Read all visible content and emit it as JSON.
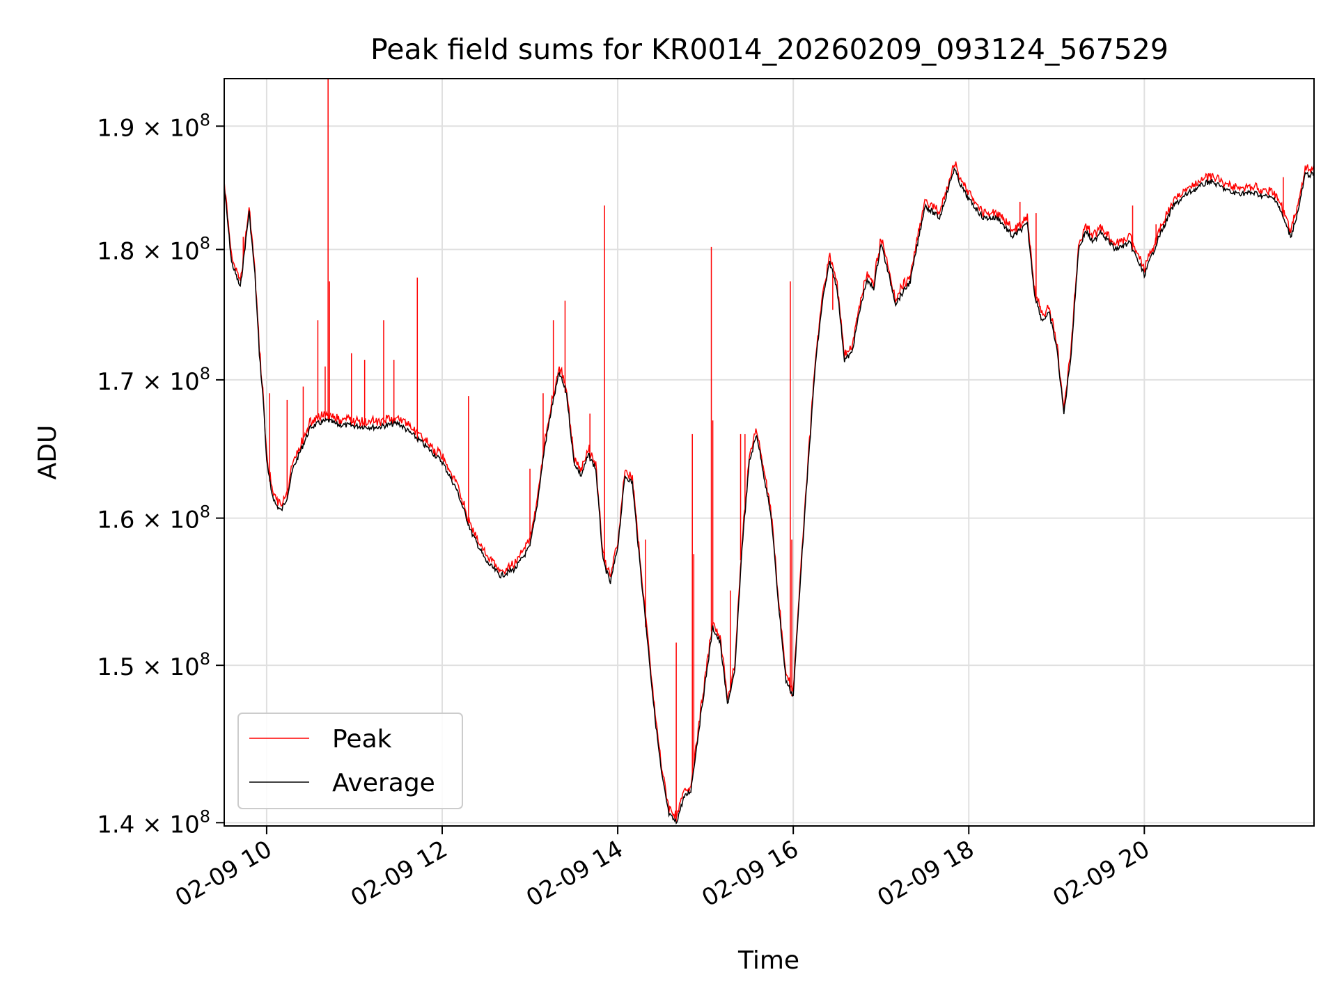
{
  "chart_data": {
    "type": "line",
    "title": "Peak field sums for KR0014_20260209_093124_567529",
    "xlabel": "Time",
    "ylabel": "ADU",
    "y_scale": "log",
    "grid": true,
    "legend_position": "lower-left",
    "xlim": [
      "2026-02-09 09:31",
      "2026-02-09 21:56"
    ],
    "ylim": [
      139800000,
      194000000
    ],
    "x_ticks": [
      {
        "value": "2026-02-09 10:00",
        "label": "02-09 10"
      },
      {
        "value": "2026-02-09 12:00",
        "label": "02-09 12"
      },
      {
        "value": "2026-02-09 14:00",
        "label": "02-09 14"
      },
      {
        "value": "2026-02-09 16:00",
        "label": "02-09 16"
      },
      {
        "value": "2026-02-09 18:00",
        "label": "02-09 18"
      },
      {
        "value": "2026-02-09 20:00",
        "label": "02-09 20"
      }
    ],
    "y_ticks": [
      {
        "value": 140000000,
        "mantissa": "1.4",
        "label": "1.4 × 10^8"
      },
      {
        "value": 150000000,
        "mantissa": "1.5",
        "label": "1.5 × 10^8"
      },
      {
        "value": 160000000,
        "mantissa": "1.6",
        "label": "1.6 × 10^8"
      },
      {
        "value": 170000000,
        "mantissa": "1.7",
        "label": "1.7 × 10^8"
      },
      {
        "value": 180000000,
        "mantissa": "1.8",
        "label": "1.8 × 10^8"
      },
      {
        "value": 190000000,
        "mantissa": "1.9",
        "label": "1.9 × 10^8"
      }
    ],
    "series": [
      {
        "name": "Average",
        "color": "#000000",
        "x": [
          "2026-02-09 09:31",
          "2026-02-09 09:36",
          "2026-02-09 09:42",
          "2026-02-09 09:48",
          "2026-02-09 09:52",
          "2026-02-09 09:55",
          "2026-02-09 09:58",
          "2026-02-09 10:00",
          "2026-02-09 10:03",
          "2026-02-09 10:06",
          "2026-02-09 10:10",
          "2026-02-09 10:14",
          "2026-02-09 10:18",
          "2026-02-09 10:24",
          "2026-02-09 10:30",
          "2026-02-09 10:36",
          "2026-02-09 10:42",
          "2026-02-09 10:48",
          "2026-02-09 11:00",
          "2026-02-09 11:15",
          "2026-02-09 11:30",
          "2026-02-09 11:45",
          "2026-02-09 12:00",
          "2026-02-09 12:10",
          "2026-02-09 12:20",
          "2026-02-09 12:30",
          "2026-02-09 12:40",
          "2026-02-09 12:50",
          "2026-02-09 13:00",
          "2026-02-09 13:05",
          "2026-02-09 13:10",
          "2026-02-09 13:15",
          "2026-02-09 13:20",
          "2026-02-09 13:25",
          "2026-02-09 13:30",
          "2026-02-09 13:35",
          "2026-02-09 13:40",
          "2026-02-09 13:45",
          "2026-02-09 13:50",
          "2026-02-09 13:55",
          "2026-02-09 14:00",
          "2026-02-09 14:05",
          "2026-02-09 14:10",
          "2026-02-09 14:15",
          "2026-02-09 14:20",
          "2026-02-09 14:25",
          "2026-02-09 14:30",
          "2026-02-09 14:35",
          "2026-02-09 14:40",
          "2026-02-09 14:45",
          "2026-02-09 14:50",
          "2026-02-09 14:55",
          "2026-02-09 15:00",
          "2026-02-09 15:05",
          "2026-02-09 15:10",
          "2026-02-09 15:15",
          "2026-02-09 15:20",
          "2026-02-09 15:25",
          "2026-02-09 15:30",
          "2026-02-09 15:35",
          "2026-02-09 15:40",
          "2026-02-09 15:45",
          "2026-02-09 15:50",
          "2026-02-09 15:55",
          "2026-02-09 16:00",
          "2026-02-09 16:05",
          "2026-02-09 16:10",
          "2026-02-09 16:15",
          "2026-02-09 16:20",
          "2026-02-09 16:25",
          "2026-02-09 16:30",
          "2026-02-09 16:35",
          "2026-02-09 16:40",
          "2026-02-09 16:45",
          "2026-02-09 16:50",
          "2026-02-09 16:55",
          "2026-02-09 17:00",
          "2026-02-09 17:10",
          "2026-02-09 17:20",
          "2026-02-09 17:30",
          "2026-02-09 17:40",
          "2026-02-09 17:50",
          "2026-02-09 17:55",
          "2026-02-09 18:00",
          "2026-02-09 18:10",
          "2026-02-09 18:20",
          "2026-02-09 18:30",
          "2026-02-09 18:40",
          "2026-02-09 18:45",
          "2026-02-09 18:50",
          "2026-02-09 18:55",
          "2026-02-09 19:00",
          "2026-02-09 19:05",
          "2026-02-09 19:10",
          "2026-02-09 19:15",
          "2026-02-09 19:20",
          "2026-02-09 19:25",
          "2026-02-09 19:30",
          "2026-02-09 19:40",
          "2026-02-09 19:50",
          "2026-02-09 20:00",
          "2026-02-09 20:10",
          "2026-02-09 20:20",
          "2026-02-09 20:30",
          "2026-02-09 20:45",
          "2026-02-09 21:00",
          "2026-02-09 21:15",
          "2026-02-09 21:30",
          "2026-02-09 21:40",
          "2026-02-09 21:45",
          "2026-02-09 21:50",
          "2026-02-09 21:56"
        ],
        "values": [
          185000000,
          179000000,
          177000000,
          183000000,
          178000000,
          172000000,
          168000000,
          164000000,
          162000000,
          161000000,
          160500000,
          161500000,
          163500000,
          165000000,
          166500000,
          166800000,
          167000000,
          166700000,
          166600000,
          166500000,
          166800000,
          165500000,
          164000000,
          162000000,
          159000000,
          157000000,
          156000000,
          156500000,
          158000000,
          161000000,
          165000000,
          168000000,
          170500000,
          169000000,
          164000000,
          163000000,
          164500000,
          163500000,
          157000000,
          155500000,
          158000000,
          163000000,
          162500000,
          157000000,
          152000000,
          147000000,
          143000000,
          140500000,
          140000000,
          141500000,
          142000000,
          145500000,
          149000000,
          152500000,
          151500000,
          147500000,
          149500000,
          158000000,
          164000000,
          166000000,
          163000000,
          160000000,
          154000000,
          149000000,
          148000000,
          156000000,
          163500000,
          171000000,
          176000000,
          179000000,
          177000000,
          171500000,
          172000000,
          175000000,
          177500000,
          177000000,
          180500000,
          175800000,
          177500000,
          183500000,
          182500000,
          186500000,
          185000000,
          184000000,
          182500000,
          182500000,
          181000000,
          182000000,
          176500000,
          174500000,
          175000000,
          172500000,
          167500000,
          172000000,
          180000000,
          181500000,
          180500000,
          181500000,
          180000000,
          180500000,
          178000000,
          181000000,
          183500000,
          184500000,
          185500000,
          184500000,
          184500000,
          184000000,
          181000000,
          183000000,
          186000000,
          186000000
        ]
      },
      {
        "name": "Peak",
        "color": "#ff0000",
        "spikes": [
          {
            "x": "2026-02-09 09:44",
            "y": 181000000
          },
          {
            "x": "2026-02-09 10:02",
            "y": 169000000
          },
          {
            "x": "2026-02-09 10:14",
            "y": 168500000
          },
          {
            "x": "2026-02-09 10:25",
            "y": 169500000
          },
          {
            "x": "2026-02-09 10:35",
            "y": 174500000
          },
          {
            "x": "2026-02-09 10:40",
            "y": 171000000
          },
          {
            "x": "2026-02-09 10:42",
            "y": 194000000
          },
          {
            "x": "2026-02-09 10:43",
            "y": 177500000
          },
          {
            "x": "2026-02-09 10:58",
            "y": 172000000
          },
          {
            "x": "2026-02-09 11:07",
            "y": 171500000
          },
          {
            "x": "2026-02-09 11:20",
            "y": 174500000
          },
          {
            "x": "2026-02-09 11:27",
            "y": 171500000
          },
          {
            "x": "2026-02-09 11:43",
            "y": 177800000
          },
          {
            "x": "2026-02-09 12:18",
            "y": 168800000
          },
          {
            "x": "2026-02-09 13:00",
            "y": 163500000
          },
          {
            "x": "2026-02-09 13:09",
            "y": 169000000
          },
          {
            "x": "2026-02-09 13:16",
            "y": 174500000
          },
          {
            "x": "2026-02-09 13:24",
            "y": 176000000
          },
          {
            "x": "2026-02-09 13:41",
            "y": 167500000
          },
          {
            "x": "2026-02-09 13:51",
            "y": 183500000
          },
          {
            "x": "2026-02-09 14:19",
            "y": 158500000
          },
          {
            "x": "2026-02-09 14:40",
            "y": 151500000
          },
          {
            "x": "2026-02-09 14:50",
            "y": 142000000
          },
          {
            "x": "2026-02-09 14:51",
            "y": 166000000
          },
          {
            "x": "2026-02-09 14:52",
            "y": 157500000
          },
          {
            "x": "2026-02-09 15:04",
            "y": 180200000
          },
          {
            "x": "2026-02-09 15:05",
            "y": 167000000
          },
          {
            "x": "2026-02-09 15:17",
            "y": 155000000
          },
          {
            "x": "2026-02-09 15:24",
            "y": 166000000
          },
          {
            "x": "2026-02-09 15:27",
            "y": 166000000
          },
          {
            "x": "2026-02-09 15:58",
            "y": 177500000
          },
          {
            "x": "2026-02-09 15:59",
            "y": 158500000
          },
          {
            "x": "2026-02-09 16:27",
            "y": 175300000
          },
          {
            "x": "2026-02-09 18:35",
            "y": 183800000
          },
          {
            "x": "2026-02-09 18:46",
            "y": 182900000
          },
          {
            "x": "2026-02-09 19:52",
            "y": 183500000
          },
          {
            "x": "2026-02-09 20:08",
            "y": 182000000
          },
          {
            "x": "2026-02-09 21:35",
            "y": 185800000
          }
        ]
      }
    ]
  }
}
